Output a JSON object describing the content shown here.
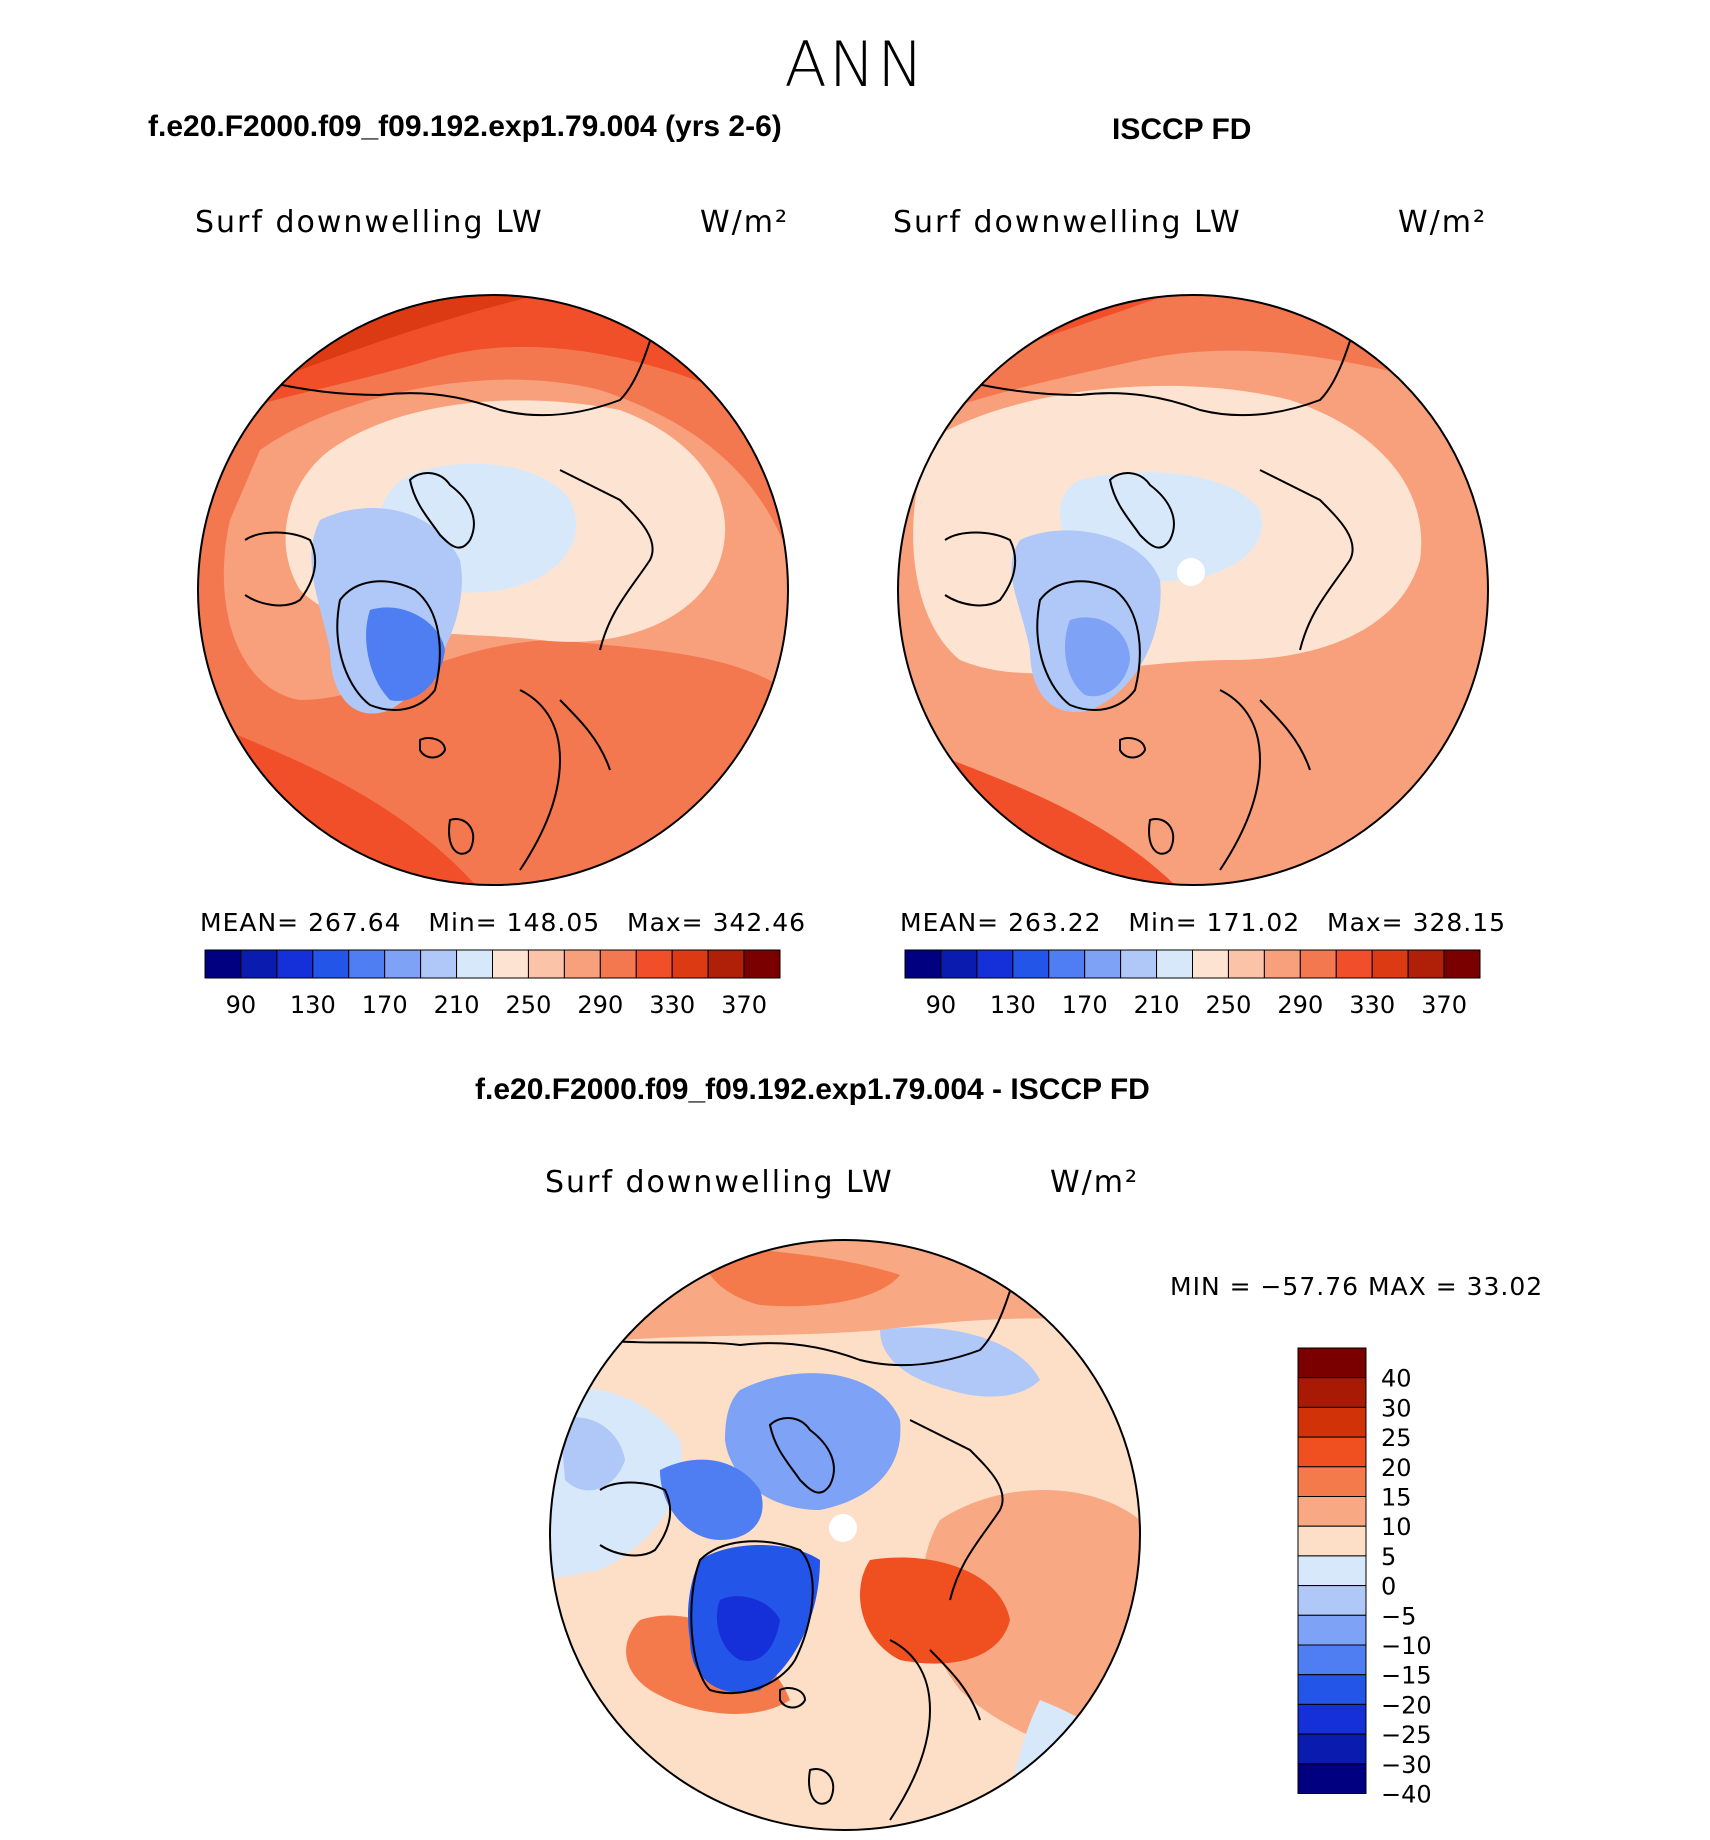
{
  "title": "ANN",
  "panels": [
    {
      "id": "model",
      "title": "f.e20.F2000.f09_f09.192.exp1.79.004 (yrs 2-6)",
      "variable": "Surf downwelling LW",
      "units": "W/m²",
      "mean_label": "MEAN=",
      "mean": "267.64",
      "min_label": "Min=",
      "min": "148.05",
      "max_label": "Max=",
      "max": "342.46"
    },
    {
      "id": "obs",
      "title": "ISCCP FD",
      "variable": "Surf downwelling LW",
      "units": "W/m²",
      "mean_label": "MEAN=",
      "mean": "263.22",
      "min_label": "Min=",
      "min": "171.02",
      "max_label": "Max=",
      "max": "328.15"
    },
    {
      "id": "diff",
      "title": "f.e20.F2000.f09_f09.192.exp1.79.004 - ISCCP FD",
      "variable": "Surf downwelling LW",
      "units": "W/m²",
      "minmax_text": "MIN = −57.76 MAX =   33.02"
    }
  ],
  "colorbar_abs": {
    "colors": [
      "#000080",
      "#0a1cb0",
      "#1530d8",
      "#2355e8",
      "#4f7ef2",
      "#7ea2f5",
      "#b0c8f7",
      "#d8e8fb",
      "#fde4d2",
      "#fbc4a8",
      "#f8a07c",
      "#f4784f",
      "#f04f2a",
      "#dc3a12",
      "#b02008",
      "#7a0000"
    ],
    "ticks": [
      "90",
      "130",
      "170",
      "210",
      "250",
      "290",
      "330",
      "370"
    ]
  },
  "colorbar_diff": {
    "colors": [
      "#7a0000",
      "#a81a04",
      "#d23208",
      "#f04f20",
      "#f47a4c",
      "#f8a882",
      "#fddfc8",
      "#d8e8fb",
      "#b0c8f7",
      "#7ea2f5",
      "#4f7ef2",
      "#2355e8",
      "#1530d8",
      "#0a1cb0",
      "#000080"
    ],
    "ticks": [
      "40",
      "30",
      "25",
      "20",
      "15",
      "10",
      "5",
      "0",
      "−5",
      "−10",
      "−15",
      "−20",
      "−25",
      "−30",
      "−40"
    ]
  }
}
